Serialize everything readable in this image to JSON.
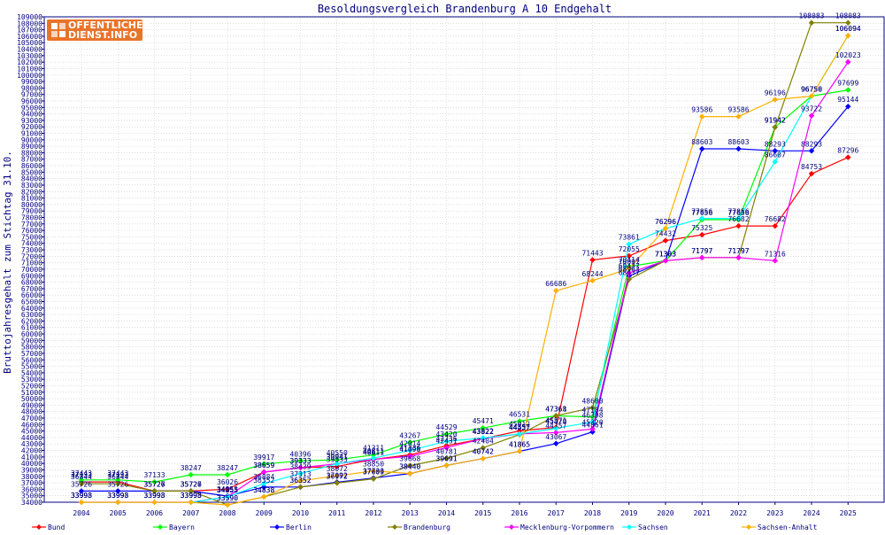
{
  "logo": {
    "line1": "OFFENTLICHER",
    "line2": "DIENST.INFO"
  },
  "chart_data": {
    "type": "line",
    "title": "Besoldungsvergleich Brandenburg A 10 Endgehalt",
    "xlabel": "",
    "ylabel": "Bruttojahresgehalt zum Stichtag 31.10.",
    "ylim": [
      34000,
      109000
    ],
    "ytick_step": 1000,
    "grid": true,
    "legend_position": "bottom",
    "x": [
      "2004",
      "2005",
      "2006",
      "2007",
      "2008",
      "2009",
      "2010",
      "2011",
      "2012",
      "2013",
      "2014",
      "2015",
      "2016",
      "2017",
      "2018",
      "2019",
      "2020",
      "2021",
      "2022",
      "2023",
      "2024",
      "2025"
    ],
    "series": [
      {
        "name": "Bund",
        "color": "#ff0000",
        "values": [
          37133,
          37133,
          35727,
          35727,
          36026,
          38659,
          39333,
          39533,
          40611,
          41336,
          42736,
          43822,
          45012,
          45571,
          71443,
          72055,
          74432,
          75325,
          76682,
          76682,
          84753,
          87296
        ]
      },
      {
        "name": "Bayern",
        "color": "#00ff00",
        "values": [
          37443,
          37443,
          37133,
          38247,
          38247,
          39917,
          40396,
          40550,
          41311,
          43267,
          44529,
          45471,
          46531,
          47361,
          47184,
          70414,
          71303,
          77656,
          77656,
          91942,
          96750,
          97699
        ]
      },
      {
        "name": "Berlin",
        "color": "#0000ff",
        "values": [
          35726,
          35726,
          35726,
          35726,
          34953,
          36352,
          36352,
          37092,
          37733,
          38440,
          39691,
          40742,
          41865,
          43067,
          44861,
          68963,
          71303,
          88603,
          88603,
          88293,
          88293,
          95144
        ]
      },
      {
        "name": "Brandenburg",
        "color": "#808000",
        "values": [
          36844,
          36844,
          35726,
          35726,
          33590,
          34838,
          36352,
          36972,
          37609,
          39668,
          40781,
          42404,
          44457,
          47368,
          48600,
          68437,
          71303,
          71797,
          71797,
          91942,
          108083,
          108083
        ]
      },
      {
        "name": "Mecklenburg-Vorpommern",
        "color": "#ff00ff",
        "values": [
          33998,
          33998,
          33998,
          33998,
          34855,
          38659,
          39333,
          39941,
          40611,
          41098,
          42431,
          43822,
          44557,
          44757,
          45320,
          69437,
          71303,
          71797,
          71797,
          71316,
          93722,
          102023
        ]
      },
      {
        "name": "Sachsen",
        "color": "#00ffff",
        "values": [
          33993,
          33993,
          33993,
          33993,
          34855,
          36884,
          38439,
          39941,
          40811,
          42014,
          43420,
          43922,
          44557,
          45420,
          46398,
          73861,
          76296,
          77856,
          77856,
          86607,
          96750,
          106094
        ]
      },
      {
        "name": "Sachsen-Anhalt",
        "color": "#ffb000",
        "values": [
          33993,
          33993,
          33993,
          33993,
          33590,
          34838,
          37313,
          38072,
          38850,
          38440,
          39691,
          40742,
          41865,
          66686,
          68244,
          70097,
          76296,
          93586,
          93586,
          96196,
          96750,
          106094
        ]
      }
    ]
  }
}
